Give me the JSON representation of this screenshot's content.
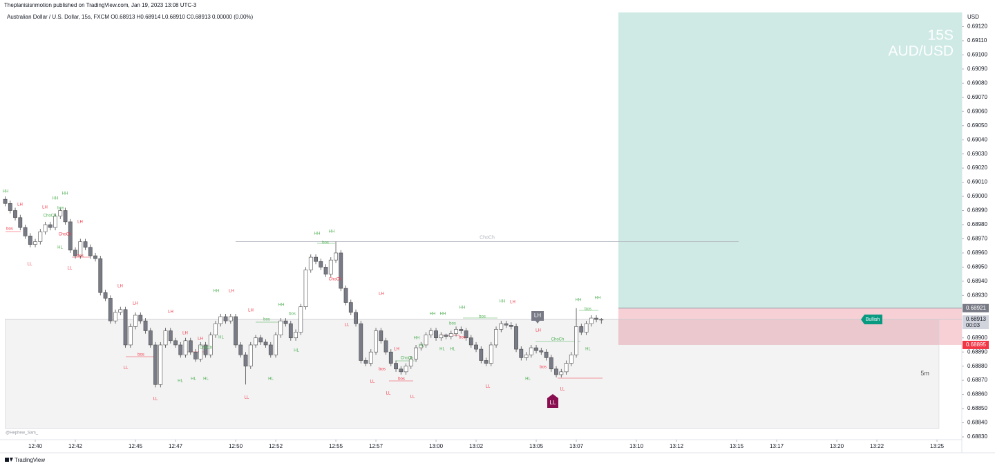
{
  "header": {
    "publisher": "Theplanisisnmotion published on TradingView.com, Jan 19, 2023 13:08 UTC-3",
    "legend": "Australian Dollar / U.S. Dollar, 15s, FXCM  O0.68913  H0.68914  L0.68910  C0.68913  0.00000 (0.00%)"
  },
  "chart_data": {
    "type": "candlestick",
    "y_axis_label": "USD",
    "watermark": [
      "15S",
      "AUD/USD"
    ],
    "x": [
      758.5,
      758.75,
      759,
      759.25,
      759.5,
      759.75,
      760,
      760.25,
      760.5,
      760.75,
      761,
      761.25,
      761.5,
      761.75,
      762,
      762.25,
      762.5,
      762.75,
      763,
      763.25,
      763.5,
      763.75,
      764,
      764.25,
      764.5,
      764.75,
      765,
      765.25,
      765.5,
      765.75,
      766,
      766.25,
      766.5,
      766.75,
      767,
      767.25,
      767.5,
      767.75,
      768,
      768.25,
      768.5,
      768.75,
      769,
      769.25,
      769.5,
      769.75,
      770,
      770.25,
      770.5,
      770.75,
      771,
      771.25,
      771.5,
      771.75,
      772,
      772.25,
      772.5,
      772.75,
      773,
      773.25,
      773.5,
      773.75,
      774,
      774.25,
      774.5,
      774.75,
      775,
      775.25,
      775.5,
      775.75,
      776,
      776.25,
      776.5,
      776.75,
      777,
      777.25,
      777.5,
      777.75,
      778,
      778.25,
      778.5,
      778.75,
      779,
      779.25,
      779.5,
      779.75,
      780,
      780.25,
      780.5,
      780.75,
      781,
      781.25,
      781.5,
      781.75,
      782,
      782.25,
      782.5,
      782.75,
      783,
      783.25,
      783.5,
      783.75,
      784,
      784.25,
      784.5,
      784.75,
      785,
      785.25,
      785.5,
      785.75,
      786,
      786.25,
      786.5,
      786.75,
      787,
      787.25,
      787.5,
      787.75,
      788,
      788.25
    ],
    "open": [
      0.68998,
      0.68995,
      0.6899,
      0.68985,
      0.68978,
      0.68972,
      0.68966,
      0.68968,
      0.68975,
      0.6898,
      0.68978,
      0.68986,
      0.6899,
      0.68982,
      0.68962,
      0.68958,
      0.68968,
      0.68964,
      0.68958,
      0.68956,
      0.68932,
      0.68928,
      0.68912,
      0.68918,
      0.6892,
      0.68895,
      0.68908,
      0.68916,
      0.68912,
      0.68905,
      0.68895,
      0.68867,
      0.68895,
      0.68905,
      0.68898,
      0.68895,
      0.68888,
      0.68898,
      0.6889,
      0.68885,
      0.68895,
      0.68888,
      0.68902,
      0.6891,
      0.68915,
      0.68912,
      0.68915,
      0.68895,
      0.68888,
      0.6888,
      0.68895,
      0.689,
      0.68897,
      0.68895,
      0.68888,
      0.68902,
      0.68912,
      0.6891,
      0.689,
      0.68904,
      0.68922,
      0.68948,
      0.68957,
      0.68954,
      0.6895,
      0.68945,
      0.68955,
      0.6896,
      0.68935,
      0.68925,
      0.68918,
      0.6891,
      0.68884,
      0.68882,
      0.6889,
      0.68905,
      0.68898,
      0.6889,
      0.68882,
      0.68878,
      0.68876,
      0.6888,
      0.68885,
      0.68893,
      0.68895,
      0.68902,
      0.68905,
      0.689,
      0.68902,
      0.68901,
      0.68903,
      0.68906,
      0.68905,
      0.689,
      0.68895,
      0.68892,
      0.68884,
      0.68882,
      0.68895,
      0.68906,
      0.6891,
      0.68909,
      0.68908,
      0.68892,
      0.68886,
      0.68888,
      0.68893,
      0.68891,
      0.6889,
      0.68886,
      0.68878,
      0.68874,
      0.68876,
      0.68882,
      0.68888,
      0.68908,
      0.68904,
      0.6891,
      0.68914,
      0.68913
    ],
    "high": [
      0.69,
      0.68997,
      0.68992,
      0.68987,
      0.6898,
      0.68974,
      0.6897,
      0.68977,
      0.68982,
      0.68982,
      0.68988,
      0.68992,
      0.68992,
      0.68984,
      0.68964,
      0.6897,
      0.6897,
      0.68966,
      0.6896,
      0.68958,
      0.68934,
      0.6893,
      0.6892,
      0.68922,
      0.68922,
      0.6891,
      0.68918,
      0.68918,
      0.68914,
      0.68907,
      0.68897,
      0.68897,
      0.68907,
      0.68907,
      0.689,
      0.68897,
      0.689,
      0.689,
      0.68892,
      0.68897,
      0.68897,
      0.68904,
      0.68912,
      0.68917,
      0.68917,
      0.68917,
      0.68917,
      0.68897,
      0.6889,
      0.68897,
      0.68902,
      0.68902,
      0.68899,
      0.68897,
      0.68904,
      0.68914,
      0.68914,
      0.68912,
      0.68906,
      0.68924,
      0.6895,
      0.68959,
      0.68959,
      0.68956,
      0.68952,
      0.68957,
      0.68968,
      0.68962,
      0.68937,
      0.68927,
      0.6892,
      0.68912,
      0.68886,
      0.68892,
      0.68907,
      0.68907,
      0.689,
      0.68892,
      0.68884,
      0.6888,
      0.68882,
      0.68887,
      0.68895,
      0.68897,
      0.68904,
      0.68907,
      0.68907,
      0.68904,
      0.68903,
      0.68905,
      0.68908,
      0.68908,
      0.68907,
      0.68902,
      0.68897,
      0.68894,
      0.68886,
      0.68897,
      0.68908,
      0.68912,
      0.68912,
      0.68911,
      0.6891,
      0.68894,
      0.6889,
      0.68895,
      0.68895,
      0.68893,
      0.68892,
      0.68888,
      0.6888,
      0.68878,
      0.68884,
      0.6889,
      0.68921,
      0.6891,
      0.68912,
      0.68916,
      0.68916,
      0.68914
    ],
    "low": [
      0.68993,
      0.68988,
      0.68983,
      0.68976,
      0.6897,
      0.68964,
      0.68964,
      0.68966,
      0.68973,
      0.68976,
      0.68976,
      0.68984,
      0.6898,
      0.6896,
      0.68956,
      0.68956,
      0.68962,
      0.68956,
      0.68954,
      0.6893,
      0.68926,
      0.6891,
      0.6891,
      0.68916,
      0.68893,
      0.68893,
      0.68906,
      0.6891,
      0.68903,
      0.68893,
      0.68865,
      0.68865,
      0.68893,
      0.68896,
      0.68893,
      0.68886,
      0.68886,
      0.68888,
      0.68883,
      0.68883,
      0.68886,
      0.68886,
      0.689,
      0.68908,
      0.6891,
      0.6891,
      0.68893,
      0.68886,
      0.68867,
      0.68878,
      0.68893,
      0.68895,
      0.68893,
      0.68886,
      0.68886,
      0.689,
      0.68908,
      0.68898,
      0.68898,
      0.68902,
      0.6892,
      0.68946,
      0.68952,
      0.68948,
      0.68943,
      0.68943,
      0.68953,
      0.68933,
      0.68923,
      0.68916,
      0.68908,
      0.68882,
      0.6888,
      0.6888,
      0.68888,
      0.68896,
      0.68888,
      0.6888,
      0.68876,
      0.68874,
      0.68874,
      0.68878,
      0.68883,
      0.68891,
      0.68893,
      0.689,
      0.68898,
      0.68898,
      0.68899,
      0.68899,
      0.68901,
      0.68903,
      0.68898,
      0.68893,
      0.6889,
      0.68882,
      0.6888,
      0.6888,
      0.68893,
      0.68904,
      0.68907,
      0.68906,
      0.6889,
      0.68884,
      0.68884,
      0.68886,
      0.68889,
      0.68888,
      0.68884,
      0.68876,
      0.68872,
      0.68872,
      0.68874,
      0.6888,
      0.68886,
      0.68902,
      0.68902,
      0.68908,
      0.68911,
      0.6891
    ],
    "close": [
      0.68995,
      0.6899,
      0.68985,
      0.68978,
      0.68972,
      0.68966,
      0.68968,
      0.68975,
      0.6898,
      0.68978,
      0.68986,
      0.6899,
      0.68982,
      0.68962,
      0.68958,
      0.68968,
      0.68964,
      0.68958,
      0.68956,
      0.68932,
      0.68928,
      0.68912,
      0.68918,
      0.6892,
      0.68895,
      0.68908,
      0.68916,
      0.68912,
      0.68905,
      0.68895,
      0.68867,
      0.68895,
      0.68905,
      0.68898,
      0.68895,
      0.68888,
      0.68898,
      0.6889,
      0.68885,
      0.68895,
      0.68888,
      0.68902,
      0.6891,
      0.68915,
      0.68912,
      0.68915,
      0.68895,
      0.68888,
      0.6888,
      0.68895,
      0.689,
      0.68897,
      0.68895,
      0.68888,
      0.68902,
      0.68912,
      0.6891,
      0.689,
      0.68904,
      0.68922,
      0.68948,
      0.68957,
      0.68954,
      0.6895,
      0.68945,
      0.68955,
      0.6896,
      0.68935,
      0.68925,
      0.68918,
      0.6891,
      0.68884,
      0.68882,
      0.6889,
      0.68905,
      0.68898,
      0.6889,
      0.68882,
      0.68878,
      0.68876,
      0.6888,
      0.68885,
      0.68893,
      0.68895,
      0.68902,
      0.68905,
      0.689,
      0.68902,
      0.68901,
      0.68903,
      0.68906,
      0.68905,
      0.689,
      0.68895,
      0.68892,
      0.68884,
      0.68882,
      0.68895,
      0.68906,
      0.6891,
      0.68909,
      0.68908,
      0.68892,
      0.68886,
      0.68888,
      0.68893,
      0.68891,
      0.6889,
      0.68886,
      0.68878,
      0.68874,
      0.68876,
      0.68882,
      0.68888,
      0.68908,
      0.68904,
      0.6891,
      0.68914,
      0.68913,
      0.68913
    ],
    "up_color": "#ffffff",
    "down_color": "#787b86",
    "wick_color": "#4a4a4a",
    "xlim": [
      758.24,
      806.24
    ],
    "xticks": [
      {
        "value": 760,
        "label": "12:40"
      },
      {
        "value": 762,
        "label": "12:42"
      },
      {
        "value": 765,
        "label": "12:45"
      },
      {
        "value": 767,
        "label": "12:47"
      },
      {
        "value": 770,
        "label": "12:50"
      },
      {
        "value": 772,
        "label": "12:52"
      },
      {
        "value": 775,
        "label": "12:55"
      },
      {
        "value": 777,
        "label": "12:57"
      },
      {
        "value": 780,
        "label": "13:00"
      },
      {
        "value": 782,
        "label": "13:02"
      },
      {
        "value": 785,
        "label": "13:05"
      },
      {
        "value": 787,
        "label": "13:07"
      },
      {
        "value": 790,
        "label": "13:10"
      },
      {
        "value": 792,
        "label": "13:12"
      },
      {
        "value": 795,
        "label": "13:15"
      },
      {
        "value": 797,
        "label": "13:17"
      },
      {
        "value": 800,
        "label": "13:20"
      },
      {
        "value": 802,
        "label": "13:22"
      },
      {
        "value": 805,
        "label": "13:25"
      }
    ],
    "ylim": [
      0.6883,
      0.6913
    ],
    "yticks": [
      {
        "value": 0.6883,
        "label": "0.68830"
      },
      {
        "value": 0.6884,
        "label": "0.68840"
      },
      {
        "value": 0.6885,
        "label": "0.68850"
      },
      {
        "value": 0.6886,
        "label": "0.68860"
      },
      {
        "value": 0.6887,
        "label": "0.68870"
      },
      {
        "value": 0.6888,
        "label": "0.68880"
      },
      {
        "value": 0.6889,
        "label": "0.68890"
      },
      {
        "value": 0.689,
        "label": "0.68900"
      },
      {
        "value": 0.6893,
        "label": "0.68930"
      },
      {
        "value": 0.6894,
        "label": "0.68940"
      },
      {
        "value": 0.6895,
        "label": "0.68950"
      },
      {
        "value": 0.6896,
        "label": "0.68960"
      },
      {
        "value": 0.6897,
        "label": "0.68970"
      },
      {
        "value": 0.6898,
        "label": "0.68980"
      },
      {
        "value": 0.6899,
        "label": "0.68990"
      },
      {
        "value": 0.69,
        "label": "0.69000"
      },
      {
        "value": 0.6901,
        "label": "0.69010"
      },
      {
        "value": 0.6902,
        "label": "0.69020"
      },
      {
        "value": 0.6903,
        "label": "0.69030"
      },
      {
        "value": 0.6904,
        "label": "0.69040"
      },
      {
        "value": 0.6905,
        "label": "0.69050"
      },
      {
        "value": 0.6906,
        "label": "0.69060"
      },
      {
        "value": 0.6907,
        "label": "0.69070"
      },
      {
        "value": 0.6908,
        "label": "0.69080"
      },
      {
        "value": 0.6909,
        "label": "0.69090"
      },
      {
        "value": 0.691,
        "label": "0.69100"
      },
      {
        "value": 0.6911,
        "label": "0.69110"
      },
      {
        "value": 0.6912,
        "label": "0.69120"
      }
    ],
    "grid": false,
    "last_price": 0.68913,
    "countdown": "00:03",
    "position": {
      "x_start": 789.1,
      "entry": 0.68921,
      "stop": 0.68895,
      "label": "Bullish",
      "target_color": "#cfeae5",
      "stop_color": "#f6d0d5"
    },
    "zone": {
      "x": [
        758.5,
        805.1
      ],
      "y": [
        0.68836,
        0.68913
      ],
      "label": "5m"
    },
    "choch_line": {
      "x": [
        770,
        795.1
      ],
      "y": 0.68968,
      "label": "ChoCh"
    },
    "badges": [
      "LH",
      "LL"
    ],
    "annotations": [
      "HH",
      "LH",
      "HH",
      "HH",
      "LH",
      "bos",
      "ChoCh",
      "bos",
      "LH",
      "ChoCh",
      "HL",
      "bos",
      "LL",
      "LL",
      "LH",
      "LH",
      "LH",
      "bos",
      "LL",
      "LL",
      "LH",
      "LH",
      "ChoCh",
      "HL",
      "HL",
      "HL",
      "HL",
      "HH",
      "LH",
      "LH",
      "bos",
      "HH",
      "bos",
      "HL",
      "HL",
      "LL",
      "HH",
      "HH",
      "bos",
      "ChoCh",
      "LL",
      "LH",
      "LH",
      "ChoCh",
      "bos",
      "bos",
      "LL",
      "LL",
      "LL",
      "HH",
      "HH",
      "HH",
      "bos",
      "bos",
      "HH",
      "LH",
      "HH",
      "HL",
      "HL",
      "HL",
      "bos",
      "LL",
      "HL",
      "ChoCh",
      "LH",
      "bos",
      "LL",
      "HH",
      "HH",
      "bos",
      "HL"
    ]
  },
  "footer": {
    "signature": "@Hephew_Sam_",
    "brand": "TradingView"
  }
}
